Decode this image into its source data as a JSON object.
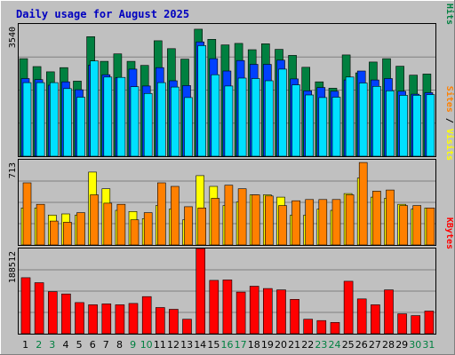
{
  "title": "Daily usage for August 2025",
  "colors": {
    "background": "#c0c0c0",
    "title": "#0000c0",
    "hits": "#008040",
    "files": "#0040ff",
    "pages": "#00e0ff",
    "visits": "#ffff00",
    "sites": "#ff8000",
    "kbytes": "#ff0000",
    "weekend_label": "#008040",
    "weekday_label": "#000000"
  },
  "chart_data": [
    {
      "type": "bar",
      "panel": "hits-files-pages",
      "y_max_label": "3540",
      "ylim": [
        0,
        3540
      ],
      "grid": true,
      "legend": [
        "Pages",
        "/",
        "Files",
        "/",
        "Hits"
      ],
      "categories": [
        "1",
        "2",
        "3",
        "4",
        "5",
        "6",
        "7",
        "8",
        "9",
        "10",
        "11",
        "12",
        "13",
        "14",
        "15",
        "16",
        "17",
        "18",
        "19",
        "20",
        "21",
        "22",
        "23",
        "24",
        "25",
        "26",
        "27",
        "28",
        "29",
        "30",
        "31"
      ],
      "weekend_days": [
        "2",
        "3",
        "9",
        "10",
        "16",
        "17",
        "23",
        "24",
        "30",
        "31"
      ],
      "series": [
        {
          "name": "Hits",
          "values": [
            2610,
            2400,
            2260,
            2370,
            2010,
            3200,
            2540,
            2740,
            2540,
            2430,
            3090,
            2880,
            2600,
            3400,
            3130,
            2980,
            3020,
            2850,
            3010,
            2860,
            2700,
            2380,
            1990,
            1820,
            2710,
            2230,
            2520,
            2610,
            2410,
            2170,
            2200
          ]
        },
        {
          "name": "Files",
          "values": [
            2080,
            2050,
            1900,
            1990,
            1780,
            2440,
            2180,
            2100,
            2330,
            1880,
            2370,
            2020,
            1890,
            3060,
            2610,
            2280,
            2560,
            2460,
            2460,
            2570,
            2070,
            1750,
            1840,
            1740,
            2040,
            2280,
            2040,
            2080,
            1740,
            1660,
            1700
          ]
        },
        {
          "name": "Pages",
          "values": [
            1970,
            1970,
            1970,
            1810,
            1580,
            2550,
            2120,
            2110,
            1860,
            1680,
            1970,
            1850,
            1570,
            2960,
            2180,
            1880,
            2090,
            2080,
            2020,
            2330,
            1910,
            1640,
            1570,
            1580,
            2120,
            1960,
            1870,
            1750,
            1630,
            1630,
            1650
          ]
        }
      ]
    },
    {
      "type": "bar",
      "panel": "sites-visits",
      "y_max_label": "713",
      "ylim": [
        0,
        713
      ],
      "grid": true,
      "legend": [
        "Sites",
        "/",
        "Visits"
      ],
      "categories": [
        "1",
        "2",
        "3",
        "4",
        "5",
        "6",
        "7",
        "8",
        "9",
        "10",
        "11",
        "12",
        "13",
        "14",
        "15",
        "16",
        "17",
        "18",
        "19",
        "20",
        "21",
        "22",
        "23",
        "24",
        "25",
        "26",
        "27",
        "28",
        "29",
        "30",
        "31"
      ],
      "series": [
        {
          "name": "Visits",
          "values": [
            310,
            310,
            250,
            260,
            250,
            610,
            470,
            290,
            280,
            220,
            330,
            300,
            210,
            580,
            490,
            330,
            360,
            420,
            420,
            400,
            250,
            250,
            300,
            290,
            430,
            560,
            400,
            390,
            340,
            300,
            310
          ]
        },
        {
          "name": "Sites",
          "values": [
            520,
            340,
            200,
            190,
            270,
            420,
            350,
            340,
            210,
            270,
            520,
            490,
            320,
            310,
            390,
            500,
            470,
            420,
            410,
            330,
            370,
            380,
            380,
            380,
            420,
            690,
            450,
            460,
            330,
            330,
            310
          ]
        }
      ]
    },
    {
      "type": "bar",
      "panel": "kbytes",
      "y_max_label": "188512",
      "ylim": [
        0,
        188512
      ],
      "grid": true,
      "legend": [
        "KBytes"
      ],
      "categories": [
        "1",
        "2",
        "3",
        "4",
        "5",
        "6",
        "7",
        "8",
        "9",
        "10",
        "11",
        "12",
        "13",
        "14",
        "15",
        "16",
        "17",
        "18",
        "19",
        "20",
        "21",
        "22",
        "23",
        "24",
        "25",
        "26",
        "27",
        "28",
        "29",
        "30",
        "31"
      ],
      "series": [
        {
          "name": "KBytes",
          "values": [
            124000,
            113000,
            93000,
            88000,
            69000,
            64000,
            66000,
            64000,
            67000,
            82000,
            58000,
            54000,
            32000,
            188512,
            118000,
            119000,
            92000,
            105000,
            100000,
            97000,
            76000,
            32000,
            29000,
            25000,
            116000,
            77000,
            64000,
            97000,
            44000,
            40000,
            50000
          ]
        }
      ]
    }
  ]
}
